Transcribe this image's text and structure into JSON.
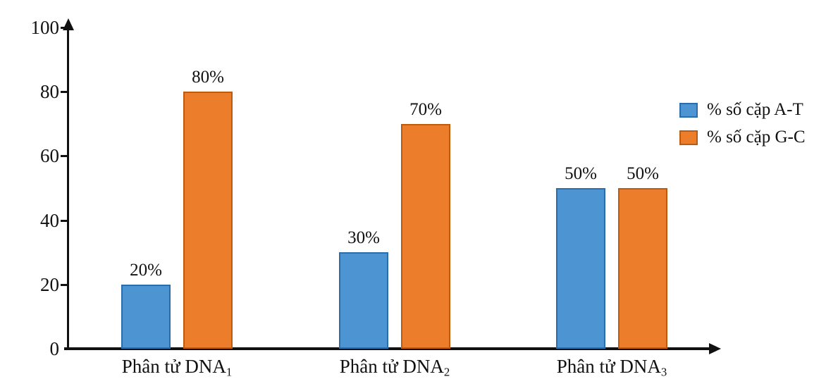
{
  "chart_data": {
    "type": "bar",
    "title": "",
    "xlabel": "",
    "ylabel": "",
    "ylim": [
      0,
      100
    ],
    "yticks": [
      0,
      20,
      40,
      60,
      80,
      100
    ],
    "ytick_labels": [
      "0",
      "20",
      "40",
      "60",
      "80",
      "100"
    ],
    "grid": false,
    "legend_position": "right",
    "background": "#ffffff",
    "axis_color": "#111111",
    "categories": [
      {
        "base": "Phân tử DNA",
        "sub": "1"
      },
      {
        "base": "Phân tử DNA",
        "sub": "2"
      },
      {
        "base": "Phân tử DNA",
        "sub": "3"
      }
    ],
    "series": [
      {
        "name": "% số cặp A-T",
        "values": [
          20,
          30,
          50
        ],
        "labels": [
          "20%",
          "30%",
          "50%"
        ],
        "color": "#4D95D2",
        "border_color": "#2A6CAC"
      },
      {
        "name": "% số cặp G-C",
        "values": [
          80,
          70,
          50
        ],
        "labels": [
          "80%",
          "70%",
          "50%"
        ],
        "color": "#EC7D2B",
        "border_color": "#BC5A0F"
      }
    ]
  }
}
